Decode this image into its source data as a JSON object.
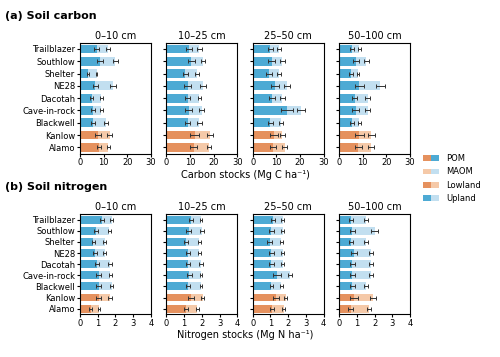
{
  "chart_data": [
    {
      "type": "bar",
      "orientation": "horizontal",
      "stacked": true,
      "title": "0–10 cm",
      "subtitle": "(a) Soil carbon",
      "xlabel": "Carbon stocks (Mg C ha⁻¹)",
      "legend": "center left",
      "groups": [
        {
          "name": "Lowland",
          "categories": [
            "Kanlow",
            "Alamo"
          ],
          "colors": {
            "POM": "#e5915e",
            "MAOM": "#f5c9a8"
          }
        },
        {
          "name": "Upland",
          "categories": [
            "Trailblazer",
            "Southlow",
            "Shelter",
            "NE28",
            "Dacotah",
            "Cave-in-rock",
            "Blackwell"
          ],
          "colors": {
            "POM": "#4daad4",
            "MAOM": "#c2dff0"
          }
        }
      ],
      "categories": [
        "Trailblazer",
        "Southlow",
        "Shelter",
        "NE28",
        "Dacotah",
        "Cave-in-rock",
        "Blackwell",
        "Kanlow",
        "Alamo"
      ],
      "xlim": [
        0,
        30
      ],
      "xticks": [
        0,
        10,
        20,
        30
      ],
      "series": [
        {
          "name": "POM",
          "values": [
            7.0,
            8.5,
            3.5,
            6.5,
            5.0,
            5.5,
            5.5,
            7.5,
            8.0
          ],
          "errors": [
            1.0,
            1.2,
            0.4,
            1.2,
            0.6,
            0.8,
            1.0,
            1.2,
            0.8
          ]
        },
        {
          "name": "MAOM",
          "values": [
            5.0,
            6.5,
            3.5,
            7.5,
            4.0,
            3.5,
            5.5,
            5.0,
            4.0
          ],
          "errors": [
            0.8,
            1.0,
            0.4,
            1.2,
            0.6,
            0.6,
            0.8,
            1.0,
            0.6
          ]
        }
      ]
    },
    {
      "type": "bar",
      "orientation": "horizontal",
      "stacked": true,
      "title": "10–25 cm",
      "tick_labels": "x",
      "categories": [
        "Trailblazer",
        "Southlow",
        "Shelter",
        "NE28",
        "Dacotah",
        "Cave-in-rock",
        "Blackwell",
        "Kanlow",
        "Alamo"
      ],
      "xlim": [
        0,
        30
      ],
      "xticks": [
        0,
        10,
        20,
        30
      ],
      "series": [
        {
          "name": "POM",
          "values": [
            9.5,
            10.5,
            8.0,
            9.0,
            9.0,
            9.5,
            9.0,
            12.0,
            11.5
          ],
          "errors": [
            1.2,
            1.5,
            1.0,
            1.5,
            1.0,
            1.5,
            1.2,
            2.0,
            1.5
          ]
        },
        {
          "name": "MAOM",
          "values": [
            4.5,
            5.0,
            5.0,
            6.5,
            5.0,
            5.5,
            5.0,
            6.5,
            6.5
          ],
          "errors": [
            1.0,
            1.0,
            0.8,
            1.2,
            0.8,
            1.0,
            1.0,
            1.2,
            1.0
          ]
        }
      ]
    },
    {
      "type": "bar",
      "orientation": "horizontal",
      "stacked": true,
      "title": "25–50 cm",
      "tick_labels": "x",
      "categories": [
        "Trailblazer",
        "Southlow",
        "Shelter",
        "NE28",
        "Dacotah",
        "Cave-in-rock",
        "Blackwell",
        "Kanlow",
        "Alamo"
      ],
      "xlim": [
        0,
        30
      ],
      "xticks": [
        0,
        10,
        20,
        30
      ],
      "series": [
        {
          "name": "POM",
          "values": [
            7.5,
            8.0,
            7.0,
            9.5,
            8.0,
            14.5,
            7.5,
            9.0,
            8.5
          ],
          "errors": [
            1.2,
            1.5,
            1.2,
            1.8,
            1.2,
            2.5,
            1.2,
            1.5,
            1.2
          ]
        },
        {
          "name": "MAOM",
          "values": [
            3.5,
            4.5,
            4.0,
            5.0,
            4.5,
            6.0,
            4.5,
            3.5,
            5.0
          ],
          "errors": [
            0.8,
            1.0,
            0.8,
            1.2,
            1.0,
            1.8,
            0.8,
            1.0,
            1.0
          ]
        }
      ]
    },
    {
      "type": "bar",
      "orientation": "horizontal",
      "stacked": true,
      "title": "50–100 cm",
      "tick_labels": "x",
      "categories": [
        "Trailblazer",
        "Southlow",
        "Shelter",
        "NE28",
        "Dacotah",
        "Cave-in-rock",
        "Blackwell",
        "Kanlow",
        "Alamo"
      ],
      "xlim": [
        0,
        30
      ],
      "xticks": [
        0,
        10,
        20,
        30
      ],
      "series": [
        {
          "name": "POM",
          "values": [
            5.5,
            7.0,
            5.0,
            8.5,
            6.5,
            7.0,
            5.5,
            8.5,
            8.0
          ],
          "errors": [
            0.8,
            1.2,
            0.8,
            2.0,
            1.2,
            1.5,
            0.8,
            2.0,
            1.5
          ]
        },
        {
          "name": "MAOM",
          "values": [
            3.0,
            4.5,
            3.0,
            9.0,
            5.5,
            5.0,
            3.0,
            5.0,
            5.5
          ],
          "errors": [
            0.6,
            1.0,
            0.6,
            2.0,
            1.2,
            1.2,
            0.6,
            1.5,
            1.2
          ]
        }
      ]
    },
    {
      "type": "bar",
      "orientation": "horizontal",
      "stacked": true,
      "title": "0–10 cm",
      "subtitle": "(b) Soil nitrogen",
      "xlabel": "Nitrogen stocks (Mg N ha⁻¹)",
      "categories": [
        "Trailblazer",
        "Southlow",
        "Shelter",
        "NE28",
        "Dacotah",
        "Cave-in-rock",
        "Blackwell",
        "Kanlow",
        "Alamo"
      ],
      "xlim": [
        0,
        4
      ],
      "xticks": [
        0,
        1,
        2,
        3,
        4
      ],
      "series": [
        {
          "name": "POM",
          "values": [
            1.25,
            0.9,
            0.75,
            0.85,
            0.95,
            1.05,
            1.05,
            1.05,
            0.6
          ],
          "errors": [
            0.12,
            0.12,
            0.1,
            0.1,
            0.12,
            0.12,
            0.12,
            0.15,
            0.08
          ]
        },
        {
          "name": "MAOM",
          "values": [
            0.55,
            0.75,
            0.65,
            0.55,
            0.75,
            0.65,
            0.75,
            0.65,
            0.45
          ],
          "errors": [
            0.08,
            0.08,
            0.08,
            0.08,
            0.1,
            0.08,
            0.08,
            0.1,
            0.06
          ]
        }
      ]
    },
    {
      "type": "bar",
      "orientation": "horizontal",
      "stacked": true,
      "title": "10–25 cm",
      "tick_labels": "x",
      "categories": [
        "Trailblazer",
        "Southlow",
        "Shelter",
        "NE28",
        "Dacotah",
        "Cave-in-rock",
        "Blackwell",
        "Kanlow",
        "Alamo"
      ],
      "xlim": [
        0,
        4
      ],
      "xticks": [
        0,
        1,
        2,
        3,
        4
      ],
      "series": [
        {
          "name": "POM",
          "values": [
            1.4,
            1.25,
            1.1,
            1.2,
            1.2,
            1.3,
            1.2,
            1.4,
            1.1
          ],
          "errors": [
            0.12,
            0.12,
            0.12,
            0.12,
            0.12,
            0.12,
            0.12,
            0.18,
            0.12
          ]
        },
        {
          "name": "MAOM",
          "values": [
            0.55,
            0.75,
            0.75,
            0.65,
            0.75,
            0.65,
            0.75,
            0.65,
            0.65
          ],
          "errors": [
            0.08,
            0.1,
            0.08,
            0.08,
            0.1,
            0.08,
            0.08,
            0.1,
            0.08
          ]
        }
      ]
    },
    {
      "type": "bar",
      "orientation": "horizontal",
      "stacked": true,
      "title": "25–50 cm",
      "tick_labels": "x",
      "categories": [
        "Trailblazer",
        "Southlow",
        "Shelter",
        "NE28",
        "Dacotah",
        "Cave-in-rock",
        "Blackwell",
        "Kanlow",
        "Alamo"
      ],
      "xlim": [
        0,
        4
      ],
      "xticks": [
        0,
        1,
        2,
        3,
        4
      ],
      "series": [
        {
          "name": "POM",
          "values": [
            1.15,
            1.05,
            0.95,
            1.05,
            1.05,
            1.35,
            1.05,
            1.3,
            1.1
          ],
          "errors": [
            0.12,
            0.12,
            0.12,
            0.12,
            0.12,
            0.22,
            0.1,
            0.18,
            0.12
          ]
        },
        {
          "name": "MAOM",
          "values": [
            0.55,
            0.65,
            0.65,
            0.65,
            0.65,
            0.75,
            0.55,
            0.55,
            0.65
          ],
          "errors": [
            0.08,
            0.08,
            0.08,
            0.08,
            0.08,
            0.1,
            0.08,
            0.08,
            0.08
          ]
        }
      ]
    },
    {
      "type": "bar",
      "orientation": "horizontal",
      "stacked": true,
      "title": "50–100 cm",
      "tick_labels": "x",
      "categories": [
        "Trailblazer",
        "Southlow",
        "Shelter",
        "NE28",
        "Dacotah",
        "Cave-in-rock",
        "Blackwell",
        "Kanlow",
        "Alamo"
      ],
      "xlim": [
        0,
        4
      ],
      "xticks": [
        0,
        1,
        2,
        3,
        4
      ],
      "series": [
        {
          "name": "POM",
          "values": [
            0.65,
            0.75,
            0.65,
            0.85,
            0.75,
            0.75,
            0.75,
            0.85,
            0.65
          ],
          "errors": [
            0.12,
            0.15,
            0.12,
            0.18,
            0.12,
            0.12,
            0.12,
            0.22,
            0.15
          ]
        },
        {
          "name": "MAOM",
          "values": [
            0.85,
            1.25,
            0.85,
            0.95,
            1.05,
            1.05,
            0.75,
            1.05,
            1.05
          ],
          "errors": [
            0.1,
            0.18,
            0.1,
            0.12,
            0.12,
            0.12,
            0.1,
            0.18,
            0.12
          ]
        }
      ]
    }
  ]
}
